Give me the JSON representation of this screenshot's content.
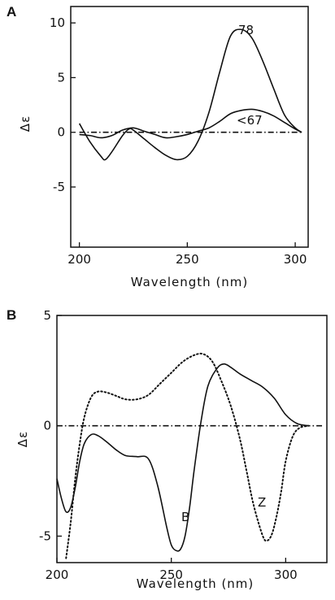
{
  "chart_data": [
    {
      "panel": "A",
      "type": "line",
      "xlabel": "Wavelength (nm)",
      "ylabel": "Δε",
      "xlim": [
        196,
        306
      ],
      "ylim": [
        -10.5,
        11.5
      ],
      "xticks": [
        200,
        250,
        300
      ],
      "yticks": [
        -5,
        0,
        5,
        10
      ],
      "grid": false,
      "series": [
        {
          "label": "78",
          "style": "solid",
          "x": [
            200,
            205,
            210,
            212,
            215,
            220,
            223,
            225,
            230,
            235,
            240,
            245,
            250,
            255,
            260,
            265,
            270,
            275,
            280,
            285,
            290,
            295,
            300,
            303
          ],
          "y": [
            0.8,
            -0.9,
            -2.2,
            -2.5,
            -1.8,
            -0.3,
            0.3,
            0.2,
            -0.6,
            -1.4,
            -2.1,
            -2.5,
            -2.2,
            -0.8,
            1.8,
            5.5,
            8.8,
            9.4,
            8.6,
            6.5,
            4.0,
            1.6,
            0.4,
            0.0
          ]
        },
        {
          "label": "<67",
          "style": "solid",
          "x": [
            200,
            205,
            210,
            215,
            220,
            225,
            230,
            235,
            240,
            245,
            250,
            255,
            260,
            265,
            270,
            275,
            280,
            285,
            290,
            295,
            300,
            303
          ],
          "y": [
            -0.2,
            -0.3,
            -0.5,
            -0.3,
            0.2,
            0.4,
            0.1,
            -0.2,
            -0.5,
            -0.4,
            -0.2,
            0.1,
            0.4,
            1.0,
            1.7,
            2.0,
            2.1,
            1.9,
            1.5,
            0.9,
            0.3,
            0.0
          ]
        },
        {
          "label": "",
          "style": "dashdot",
          "x": [
            200,
            303
          ],
          "y": [
            0,
            0
          ]
        }
      ]
    },
    {
      "panel": "B",
      "type": "line",
      "xlabel": "Wavelength (nm)",
      "ylabel": "Δε",
      "xlim": [
        200,
        318
      ],
      "ylim": [
        -6.2,
        5
      ],
      "xticks": [
        200,
        250,
        300
      ],
      "yticks": [
        -5,
        0,
        5
      ],
      "grid": false,
      "series": [
        {
          "label": "B",
          "style": "solid",
          "x": [
            200,
            202,
            204,
            206,
            208,
            210,
            212,
            215,
            218,
            222,
            226,
            230,
            235,
            240,
            244,
            248,
            250,
            252,
            254,
            256,
            258,
            260,
            263,
            266,
            270,
            273,
            276,
            280,
            285,
            290,
            295,
            300,
            305,
            310
          ],
          "y": [
            -2.4,
            -3.3,
            -3.9,
            -3.7,
            -2.8,
            -1.6,
            -0.8,
            -0.4,
            -0.45,
            -0.75,
            -1.1,
            -1.35,
            -1.4,
            -1.5,
            -2.7,
            -4.6,
            -5.4,
            -5.65,
            -5.6,
            -5.0,
            -3.7,
            -2.0,
            0.2,
            1.8,
            2.6,
            2.8,
            2.65,
            2.35,
            2.05,
            1.75,
            1.25,
            0.5,
            0.1,
            0.0
          ]
        },
        {
          "label": "Z",
          "style": "dotted",
          "x": [
            204,
            206,
            208,
            210,
            212,
            215,
            218,
            222,
            226,
            230,
            235,
            240,
            245,
            250,
            255,
            260,
            264,
            268,
            272,
            276,
            280,
            283,
            286,
            290,
            292,
            294,
            296,
            298,
            300,
            303,
            306,
            310
          ],
          "y": [
            -6.0,
            -4.4,
            -2.4,
            -0.8,
            0.4,
            1.3,
            1.55,
            1.5,
            1.35,
            1.2,
            1.2,
            1.4,
            1.9,
            2.4,
            2.9,
            3.2,
            3.25,
            2.9,
            2.0,
            0.9,
            -0.6,
            -2.1,
            -3.6,
            -5.0,
            -5.2,
            -4.9,
            -4.1,
            -3.0,
            -1.6,
            -0.5,
            -0.1,
            0.0
          ]
        },
        {
          "label": "",
          "style": "dashdot",
          "x": [
            200,
            316
          ],
          "y": [
            0,
            0
          ]
        }
      ]
    }
  ]
}
